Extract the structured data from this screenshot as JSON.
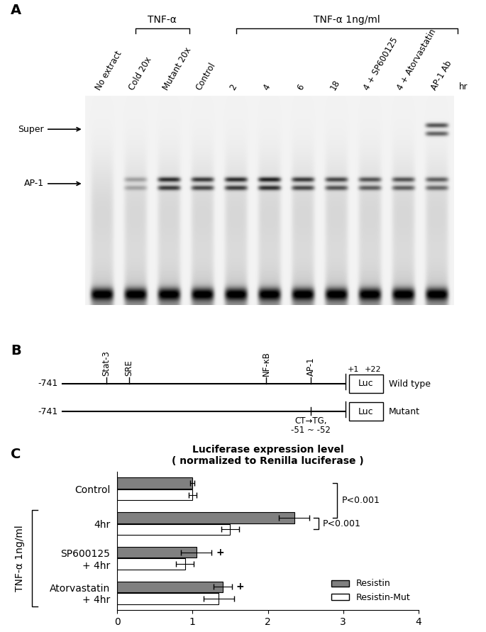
{
  "panel_a": {
    "letter": "A",
    "lanes": [
      "No extract",
      "Cold 20x",
      "Mutant 20x",
      "Control",
      "2",
      "4",
      "6",
      "18",
      "4 + SP600125",
      "4 + Atorvastatin",
      "AP-1 Ab"
    ],
    "lane_unit": "hr",
    "groups": [
      {
        "text": "TNF-α",
        "from": "Cold 20x",
        "to": "Mutant 20x"
      },
      {
        "text": "TNF-α 1ng/ml",
        "from": "2",
        "to": "AP-1 Ab"
      }
    ],
    "bands": [
      {
        "label": "Super",
        "intensity": [
          0,
          0,
          0,
          0,
          0,
          0,
          0,
          0,
          0,
          0,
          0.6
        ]
      },
      {
        "label": "AP-1",
        "intensity": [
          0,
          0.25,
          0.7,
          0.65,
          0.7,
          0.75,
          0.65,
          0.6,
          0.55,
          0.55,
          0.5
        ]
      }
    ]
  },
  "panel_b": {
    "letter": "B",
    "reporter": "Luc",
    "constructs": [
      {
        "name": "Wild type",
        "start": "-741",
        "elements": [
          "Stat-3",
          "SRE",
          "NF-κB",
          "AP-1"
        ],
        "tss": [
          "+1",
          "+22"
        ]
      },
      {
        "name": "Mutant",
        "start": "-741",
        "mutation": [
          "CT→TG,",
          "-51 ~ -52"
        ]
      }
    ]
  },
  "chart_data": {
    "type": "bar",
    "orientation": "horizontal",
    "letter": "C",
    "title": "Luciferase expression level\n( normalized to Renilla luciferase )",
    "categories": [
      "Control",
      "4hr",
      "SP600125\n+ 4hr",
      "Atorvastatin\n+ 4hr"
    ],
    "series": [
      {
        "name": "Resistin",
        "color": "#808080",
        "values": [
          1.0,
          2.35,
          1.05,
          1.4
        ],
        "errors": [
          0.03,
          0.2,
          0.2,
          0.12
        ]
      },
      {
        "name": "Resistin-Mut",
        "color": "#ffffff",
        "values": [
          1.0,
          1.5,
          0.9,
          1.35
        ],
        "errors": [
          0.05,
          0.12,
          0.12,
          0.2
        ]
      }
    ],
    "xlim": [
      0,
      4
    ],
    "xticks": [
      0,
      1,
      2,
      3,
      4
    ],
    "legend": "lower right",
    "group": {
      "text": "TNF-α 1ng/ml",
      "from": "4hr",
      "to": "Atorvastatin\n+ 4hr"
    },
    "annotations": [
      {
        "text": "P<0.001",
        "categories": [
          "Control",
          "4hr"
        ],
        "series": [
          "Resistin",
          "Resistin"
        ]
      },
      {
        "text": "P<0.001",
        "categories": [
          "4hr",
          "4hr"
        ],
        "series": [
          "Resistin",
          "Resistin-Mut"
        ]
      }
    ],
    "markers": [
      {
        "text": "+",
        "category": "SP600125\n+ 4hr",
        "series": "Resistin"
      },
      {
        "text": "+",
        "category": "Atorvastatin\n+ 4hr",
        "series": "Resistin"
      }
    ]
  }
}
